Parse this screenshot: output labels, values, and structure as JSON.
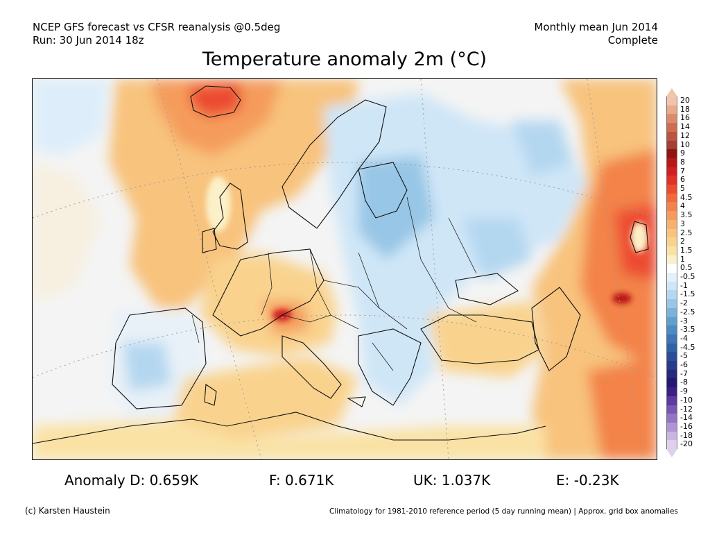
{
  "header": {
    "line1_left": "NCEP GFS forecast vs CFSR reanalysis @0.5deg",
    "line2_left": "Run: 30 Jun 2014 18z",
    "line1_right": "Monthly mean Jun 2014",
    "line2_right": "Complete"
  },
  "title": "Temperature anomaly 2m (°C)",
  "legend": {
    "labels": [
      "20",
      "18",
      "16",
      "14",
      "12",
      "10",
      "9",
      "8",
      "7",
      "6",
      "5",
      "4.5",
      "4",
      "3.5",
      "3",
      "2.5",
      "2",
      "1.5",
      "1",
      "0.5",
      "-0.5",
      "-1",
      "-1.5",
      "-2",
      "-2.5",
      "-3",
      "-3.5",
      "-4",
      "-4.5",
      "-5",
      "-6",
      "-7",
      "-8",
      "-9",
      "-10",
      "-12",
      "-14",
      "-16",
      "-18",
      "-20"
    ],
    "colors": [
      "#f2c4ac",
      "#e9a98b",
      "#dc8a6a",
      "#cd6e52",
      "#bb5440",
      "#a83e33",
      "#8e1510",
      "#b81818",
      "#d22020",
      "#e23226",
      "#ec4c30",
      "#f16a3c",
      "#f3834a",
      "#f59c5c",
      "#f7b06d",
      "#f8c37d",
      "#f9d38e",
      "#fae2a4",
      "#fcf0c8",
      "#ffffff",
      "#e4f1fb",
      "#cfe6f7",
      "#b4d7f0",
      "#97c6e6",
      "#7ab2da",
      "#619fcf",
      "#4c8ac2",
      "#3c76b4",
      "#3063a6",
      "#2a4f98",
      "#273c89",
      "#26297c",
      "#261870",
      "#3d1f86",
      "#5c3aa0",
      "#7856b4",
      "#9574c6",
      "#b094d6",
      "#c9b4e3",
      "#ddd1ee"
    ]
  },
  "stats": {
    "anomaly_d": "Anomaly D: 0.659K",
    "f": "F: 0.671K",
    "uk": "UK: 1.037K",
    "e": "E: -0.23K"
  },
  "footer": {
    "credit": "(c) Karsten Haustein",
    "note": "Climatology for 1981-2010 reference period (5 day running mean) | Approx. grid box anomalies"
  }
}
